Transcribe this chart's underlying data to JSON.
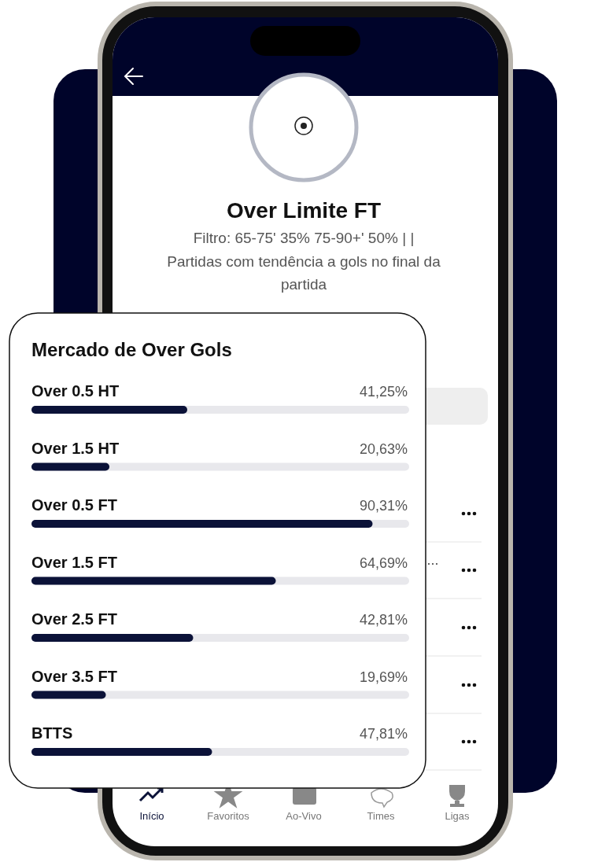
{
  "chart_data": [
    {
      "type": "other",
      "title": "Over Limite FT",
      "subtitle": "Filtro: 65-75' 35% 75-90+' 50% | |",
      "annotations": [
        "Partidas com tendência a gols no final da partida",
        "Início",
        "Favoritos",
        "Ao-Vivo",
        "Times",
        "Ligas"
      ]
    },
    {
      "type": "bar",
      "orientation": "horizontal",
      "title": "Mercado de Over Gols",
      "categories": [
        "Over 0.5 HT",
        "Over 1.5 HT",
        "Over 0.5 FT",
        "Over 1.5 FT",
        "Over 2.5 FT",
        "Over 3.5 FT",
        "BTTS"
      ],
      "values": [
        41.25,
        20.63,
        90.31,
        64.69,
        42.81,
        19.69,
        47.81
      ],
      "value_labels": [
        "41,25%",
        "20,63%",
        "90,31%",
        "64,69%",
        "42,81%",
        "19,69%",
        "47,81%"
      ],
      "color": "#0b1238",
      "xlim": [
        0,
        100
      ]
    }
  ]
}
